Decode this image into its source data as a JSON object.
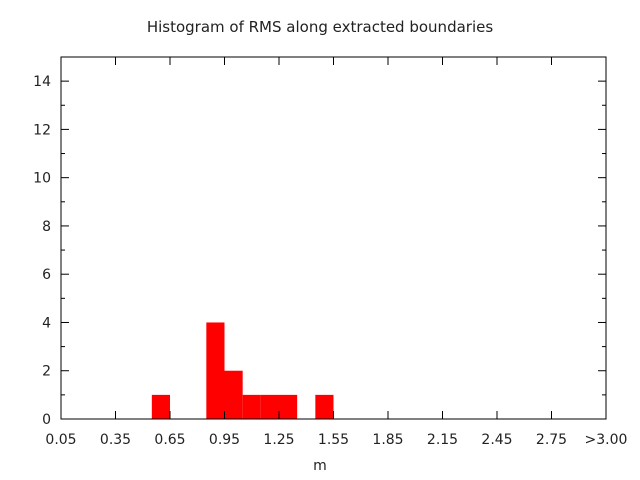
{
  "chart_data": {
    "type": "bar",
    "title": "Histogram of RMS along extracted boundaries",
    "xlabel": "m",
    "ylabel": "",
    "bin_width": 0.1,
    "bins": [
      {
        "start": 0.55,
        "end": 0.65,
        "count": 1
      },
      {
        "start": 0.85,
        "end": 0.95,
        "count": 4
      },
      {
        "start": 0.95,
        "end": 1.05,
        "count": 2
      },
      {
        "start": 1.05,
        "end": 1.15,
        "count": 1
      },
      {
        "start": 1.15,
        "end": 1.25,
        "count": 1
      },
      {
        "start": 1.25,
        "end": 1.35,
        "count": 1
      },
      {
        "start": 1.45,
        "end": 1.55,
        "count": 1
      }
    ],
    "xlim": [
      0.05,
      3.05
    ],
    "ylim": [
      0,
      15
    ],
    "xticks": [
      0.05,
      0.35,
      0.65,
      0.95,
      1.25,
      1.55,
      1.85,
      2.15,
      2.45,
      2.75,
      3.05
    ],
    "xtick_labels": [
      "0.05",
      "0.35",
      "0.65",
      "0.95",
      "1.25",
      "1.55",
      "1.85",
      "2.15",
      "2.45",
      "2.75",
      ">3.00"
    ],
    "yticks": [
      0,
      2,
      4,
      6,
      8,
      10,
      12,
      14
    ],
    "yminor_step": 1,
    "grid": false,
    "legend": "none",
    "colors": {
      "bar": "#ff0000",
      "axis": "#000000"
    }
  }
}
